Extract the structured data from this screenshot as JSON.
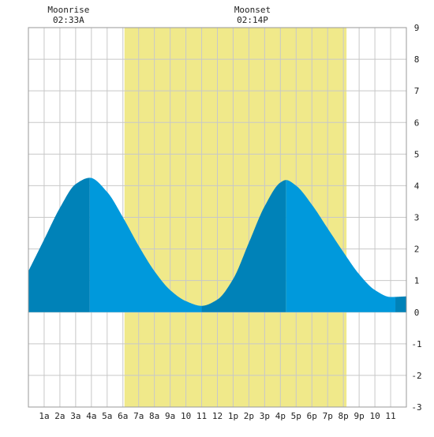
{
  "events": [
    {
      "label": "Moonrise",
      "time": "02:33A",
      "hour": 2.55
    },
    {
      "label": "Moonset",
      "time": "02:14P",
      "hour": 14.23
    }
  ],
  "chart_data": {
    "type": "area",
    "title": "",
    "xlabel": "",
    "ylabel": "",
    "xlim": [
      0,
      24
    ],
    "ylim": [
      -3,
      9
    ],
    "grid": true,
    "x_tick_labels": [
      "1a",
      "2a",
      "3a",
      "4a",
      "5a",
      "6a",
      "7a",
      "8a",
      "9a",
      "10",
      "11",
      "12",
      "1p",
      "2p",
      "3p",
      "4p",
      "5p",
      "6p",
      "7p",
      "8p",
      "9p",
      "10",
      "11"
    ],
    "x_tick_hours": [
      1,
      2,
      3,
      4,
      5,
      6,
      7,
      8,
      9,
      10,
      11,
      12,
      13,
      14,
      15,
      16,
      17,
      18,
      19,
      20,
      21,
      22,
      23
    ],
    "y_ticks": [
      -3,
      -2,
      -1,
      0,
      1,
      2,
      3,
      4,
      5,
      6,
      7,
      8,
      9
    ],
    "daylight": {
      "start_hour": 6.1,
      "end_hour": 20.2
    },
    "tide_extremes": [
      {
        "type": "high",
        "hour": 3.9,
        "height": 4.25
      },
      {
        "type": "low",
        "hour": 11.0,
        "height": 0.2
      },
      {
        "type": "high",
        "hour": 16.35,
        "height": 4.18
      },
      {
        "type": "low",
        "hour": 23.3,
        "height": 0.48
      }
    ],
    "series": [
      {
        "x": [
          0,
          1,
          2,
          3,
          3.9,
          5,
          6,
          7,
          8,
          9,
          10,
          11,
          12,
          13,
          14,
          15,
          16,
          16.35,
          17,
          18,
          19,
          20,
          21,
          22,
          23,
          24
        ],
        "values": [
          1.3,
          2.3,
          3.3,
          4.05,
          4.25,
          3.8,
          3.0,
          2.1,
          1.3,
          0.7,
          0.35,
          0.2,
          0.4,
          1.05,
          2.2,
          3.35,
          4.1,
          4.18,
          4.0,
          3.4,
          2.65,
          1.9,
          1.2,
          0.7,
          0.48,
          0.5
        ]
      }
    ],
    "shade_split_hours": [
      3.9,
      11.0,
      16.35,
      23.3
    ],
    "colors": {
      "daylight": "#f0e98a",
      "tide_rising": "#0082b8",
      "tide_falling": "#0099dc",
      "grid": "#c8c8c8",
      "background": "#ffffff"
    }
  }
}
